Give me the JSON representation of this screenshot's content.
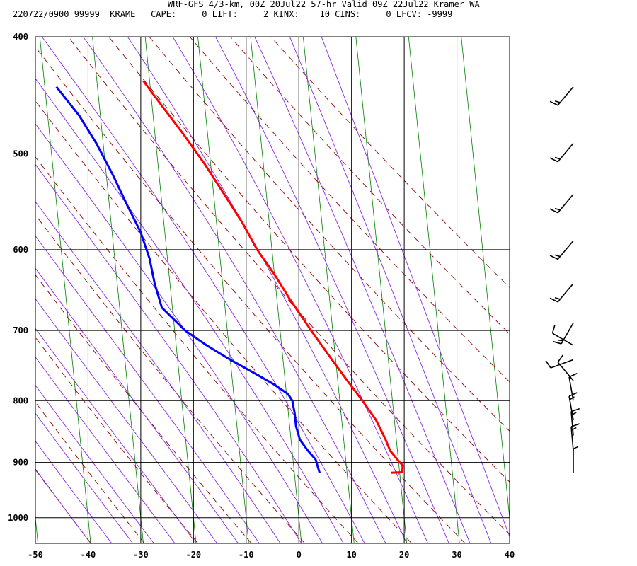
{
  "header": {
    "line1": "WRF-GFS 4/3-km, 00Z 20Jul22 57-hr Valid 09Z 22Jul22 Kramer WA",
    "line2": "220722/0900 99999  KRAME   CAPE:     0 LIFT:     2 KINX:    10 CINS:     0 LFCV: -9999"
  },
  "chart_data": {
    "type": "line",
    "title": "WRF-GFS 4/3-km, 00Z 20Jul22 57-hr Valid 09Z 22Jul22 Kramer WA",
    "xlabel": "",
    "ylabel": "",
    "x_axis": {
      "min": -50,
      "max": 40,
      "ticks": [
        -50,
        -40,
        -30,
        -20,
        -10,
        0,
        10,
        20,
        30,
        40
      ],
      "tick_labels": [
        "-50",
        "-40",
        "-30",
        "-20",
        "-10",
        "0",
        "10",
        "20",
        "30",
        "40"
      ]
    },
    "y_axis": {
      "scale": "log",
      "inverted": true,
      "min": 400,
      "max": 1050,
      "ticks": [
        400,
        500,
        600,
        700,
        800,
        900,
        1000
      ],
      "tick_labels": [
        "400",
        "500",
        "600",
        "700",
        "800",
        "900",
        "1000"
      ]
    },
    "grid": true,
    "series": [
      {
        "key": "temperature",
        "color": "#ff0000",
        "points": [
          [
            918,
            18.3
          ],
          [
            917,
            20.5
          ],
          [
            905,
            20.7
          ],
          [
            900,
            20.2
          ],
          [
            880,
            18.6
          ],
          [
            860,
            17.9
          ],
          [
            830,
            16.5
          ],
          [
            800,
            14.3
          ],
          [
            770,
            11.8
          ],
          [
            740,
            9.3
          ],
          [
            700,
            5.9
          ],
          [
            660,
            2.5
          ],
          [
            630,
            0.1
          ],
          [
            600,
            -2.8
          ],
          [
            570,
            -5.1
          ],
          [
            540,
            -8.0
          ],
          [
            510,
            -11.1
          ],
          [
            480,
            -14.8
          ],
          [
            455,
            -18.3
          ],
          [
            435,
            -21.2
          ]
        ]
      },
      {
        "key": "dewpoint",
        "color": "#0000ff",
        "points": [
          [
            918,
            4.8
          ],
          [
            905,
            4.5
          ],
          [
            895,
            4.3
          ],
          [
            880,
            3.0
          ],
          [
            862,
            1.7
          ],
          [
            840,
            1.2
          ],
          [
            820,
            1.2
          ],
          [
            800,
            1.0
          ],
          [
            790,
            0.3
          ],
          [
            775,
            -2.3
          ],
          [
            760,
            -5.5
          ],
          [
            740,
            -10.0
          ],
          [
            720,
            -14.2
          ],
          [
            700,
            -18.0
          ],
          [
            670,
            -22.0
          ],
          [
            640,
            -22.9
          ],
          [
            610,
            -23.4
          ],
          [
            580,
            -24.6
          ],
          [
            550,
            -26.7
          ],
          [
            520,
            -28.8
          ],
          [
            490,
            -31.3
          ],
          [
            465,
            -34.0
          ],
          [
            440,
            -37.8
          ]
        ]
      }
    ],
    "reference_lines": {
      "isotherm_color": "#008000",
      "dry_adiabat_color": "#8b0000",
      "moist_adiabat_color": "#8a2be2"
    },
    "wind_barbs": {
      "color": "#000000",
      "levels": [
        {
          "p": 440,
          "dir": 220,
          "spd": 15
        },
        {
          "p": 490,
          "dir": 220,
          "spd": 15
        },
        {
          "p": 540,
          "dir": 220,
          "spd": 15
        },
        {
          "p": 590,
          "dir": 220,
          "spd": 15
        },
        {
          "p": 640,
          "dir": 220,
          "spd": 15
        },
        {
          "p": 690,
          "dir": 210,
          "spd": 15
        },
        {
          "p": 720,
          "dir": 300,
          "spd": 10
        },
        {
          "p": 740,
          "dir": 250,
          "spd": 10
        },
        {
          "p": 770,
          "dir": 320,
          "spd": 10
        },
        {
          "p": 800,
          "dir": 350,
          "spd": 10
        },
        {
          "p": 830,
          "dir": 350,
          "spd": 15
        },
        {
          "p": 855,
          "dir": 355,
          "spd": 15
        },
        {
          "p": 880,
          "dir": 355,
          "spd": 15
        },
        {
          "p": 918,
          "dir": 360,
          "spd": 5
        }
      ]
    }
  }
}
